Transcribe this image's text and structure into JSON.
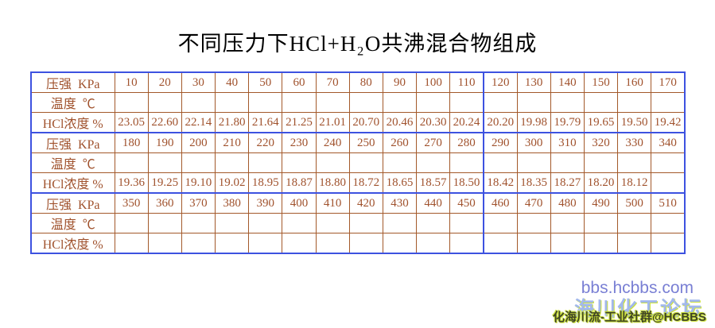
{
  "title": "不同压力下HCl+H₂O共沸混合物组成",
  "colors": {
    "border_blue": "#3d52e0",
    "border_brown": "#a3592a",
    "cell_text": "#a0522d",
    "title_text": "#000000",
    "watermark_url": "#797fd4",
    "watermark_forum": "#a2b8ec",
    "watermark_tagline": "#3f4426",
    "watermark_glow": "#cde23c"
  },
  "table": {
    "row_labels": {
      "pressure": "压强  KPa",
      "temperature": "温度  ℃",
      "hcl": "HCl浓度 %"
    },
    "columns_per_group": 17,
    "blue_divider_at_column_index": 11,
    "groups": [
      {
        "pressures": [
          "10",
          "20",
          "30",
          "40",
          "50",
          "60",
          "70",
          "80",
          "90",
          "100",
          "110",
          "120",
          "130",
          "140",
          "150",
          "160",
          "170"
        ],
        "temperatures": [],
        "hcl": [
          "23.05",
          "22.60",
          "22.14",
          "21.80",
          "21.64",
          "21.25",
          "21.01",
          "20.70",
          "20.46",
          "20.30",
          "20.24",
          "20.20",
          "19.98",
          "19.79",
          "19.65",
          "19.50",
          "19.42"
        ]
      },
      {
        "pressures": [
          "180",
          "190",
          "200",
          "210",
          "220",
          "230",
          "240",
          "250",
          "260",
          "270",
          "280",
          "290",
          "300",
          "310",
          "320",
          "330",
          "340"
        ],
        "temperatures": [],
        "hcl": [
          "19.36",
          "19.25",
          "19.10",
          "19.02",
          "18.95",
          "18.87",
          "18.80",
          "18.72",
          "18.65",
          "18.57",
          "18.50",
          "18.42",
          "18.35",
          "18.27",
          "18.20",
          "18.12",
          ""
        ]
      },
      {
        "pressures": [
          "350",
          "360",
          "370",
          "380",
          "390",
          "400",
          "410",
          "420",
          "430",
          "440",
          "450",
          "460",
          "470",
          "480",
          "490",
          "500",
          "510"
        ],
        "temperatures": [],
        "hcl": []
      }
    ]
  },
  "watermark": {
    "site": "bbs.hcbbs.com",
    "forum": "海川化工论坛",
    "tagline": "化海川流-工业社群@HCBBS"
  }
}
